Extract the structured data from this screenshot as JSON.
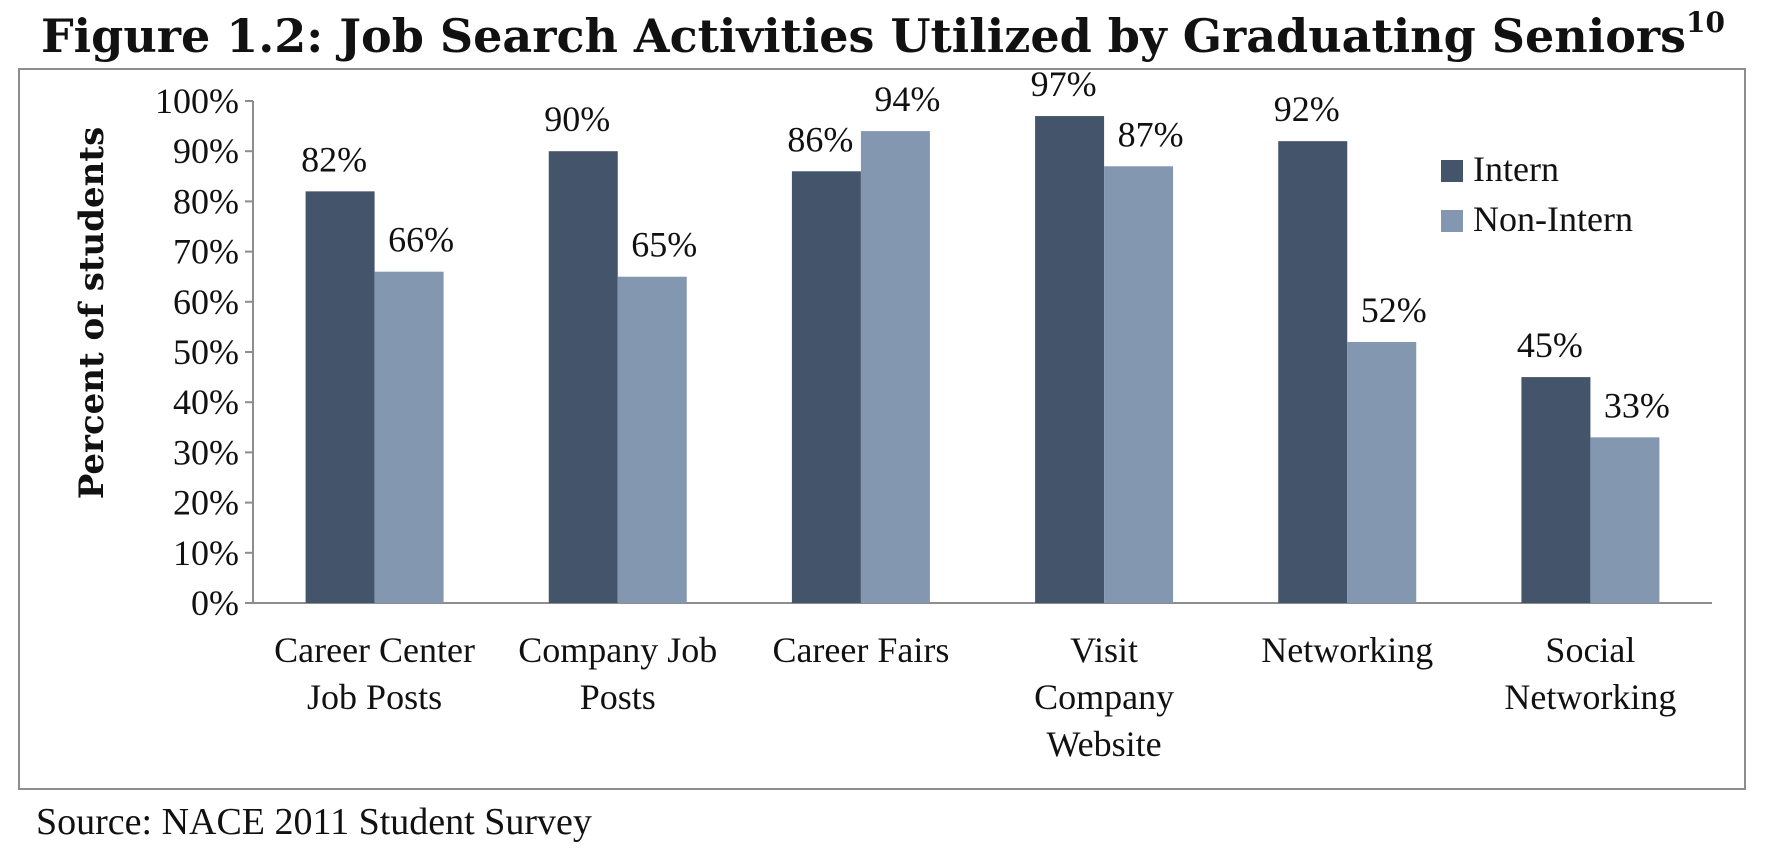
{
  "chart_data": {
    "type": "bar",
    "title": "Figure 1.2: Job Search Activities Utilized by Graduating Seniors",
    "title_superscript": "10",
    "source": "Source: NACE 2011 Student Survey",
    "ylabel": "Percent of students",
    "xlabel": "",
    "ylim": [
      0,
      100
    ],
    "ytick_values": [
      0,
      10,
      20,
      30,
      40,
      50,
      60,
      70,
      80,
      90,
      100
    ],
    "ytick_labels": [
      "0%",
      "10%",
      "20%",
      "30%",
      "40%",
      "50%",
      "60%",
      "70%",
      "80%",
      "90%",
      "100%"
    ],
    "categories": [
      [
        "Career Center",
        "Job Posts"
      ],
      [
        "Company Job",
        "Posts"
      ],
      [
        "Career Fairs"
      ],
      [
        "Visit",
        "Company",
        "Website"
      ],
      [
        "Networking"
      ],
      [
        "Social",
        "Networking"
      ]
    ],
    "series": [
      {
        "name": "Intern",
        "color": "#44546a",
        "values": [
          82,
          90,
          86,
          97,
          92,
          45
        ],
        "labels": [
          "82%",
          "90%",
          "86%",
          "97%",
          "92%",
          "45%"
        ]
      },
      {
        "name": "Non-Intern",
        "color": "#8497b0",
        "values": [
          66,
          65,
          94,
          87,
          52,
          33
        ],
        "labels": [
          "66%",
          "65%",
          "94%",
          "87%",
          "52%",
          "33%"
        ]
      }
    ],
    "grid": false,
    "legend_position": "top-right",
    "axis_color": "#8d8d8d"
  }
}
